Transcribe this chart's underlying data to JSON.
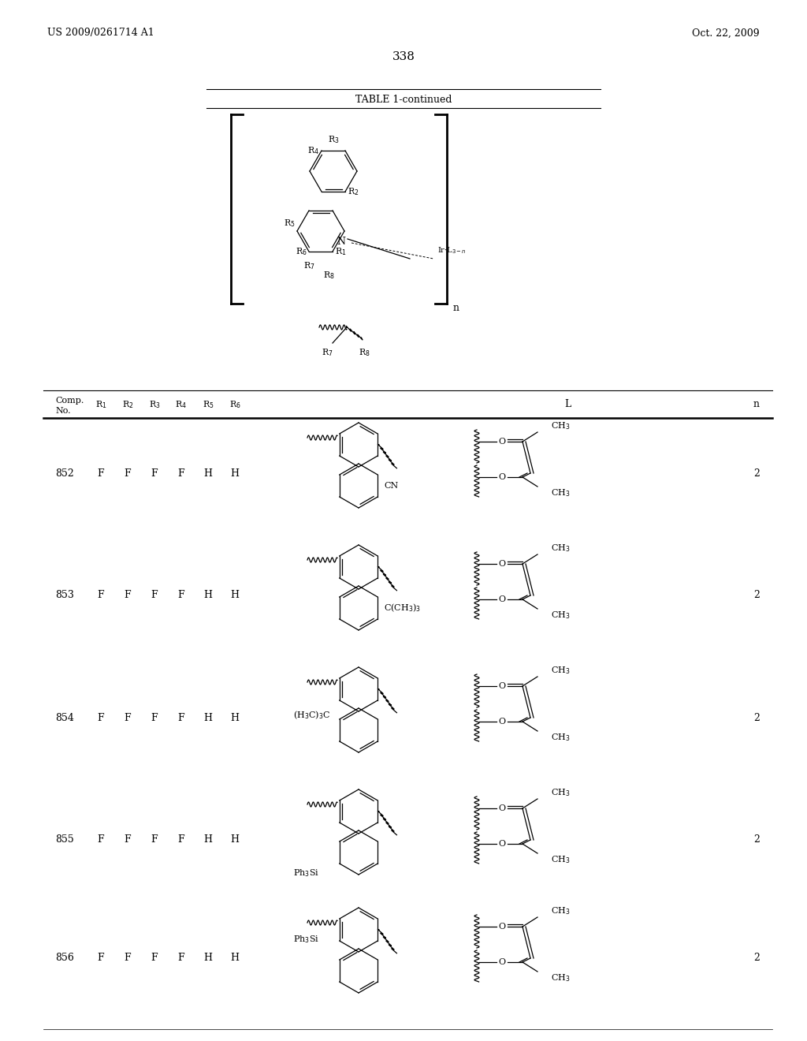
{
  "page_number": "338",
  "patent_left": "US 2009/0261714 A1",
  "patent_right": "Oct. 22, 2009",
  "table_title": "TABLE 1-continued",
  "rows": [
    {
      "no": "852",
      "r1": "F",
      "r2": "F",
      "r3": "F",
      "r4": "F",
      "r5": "H",
      "r6": "H",
      "sub_label": "CN",
      "sub_pos": "right_bottom",
      "n": "2"
    },
    {
      "no": "853",
      "r1": "F",
      "r2": "F",
      "r3": "F",
      "r4": "F",
      "r5": "H",
      "r6": "H",
      "sub_label": "C(CH$_3$)$_3$",
      "sub_pos": "right_bottom",
      "n": "2"
    },
    {
      "no": "854",
      "r1": "F",
      "r2": "F",
      "r3": "F",
      "r4": "F",
      "r5": "H",
      "r6": "H",
      "sub_label": "(H$_3$C)$_3$C",
      "sub_pos": "left_mid",
      "n": "2"
    },
    {
      "no": "855",
      "r1": "F",
      "r2": "F",
      "r3": "F",
      "r4": "F",
      "r5": "H",
      "r6": "H",
      "sub_label": "Ph$_3$Si",
      "sub_pos": "left_bottom",
      "n": "2"
    },
    {
      "no": "856",
      "r1": "F",
      "r2": "F",
      "r3": "F",
      "r4": "F",
      "r5": "H",
      "r6": "H",
      "sub_label": "Ph$_3$Si",
      "sub_pos": "left_top",
      "n": "2"
    }
  ],
  "background_color": "#ffffff"
}
